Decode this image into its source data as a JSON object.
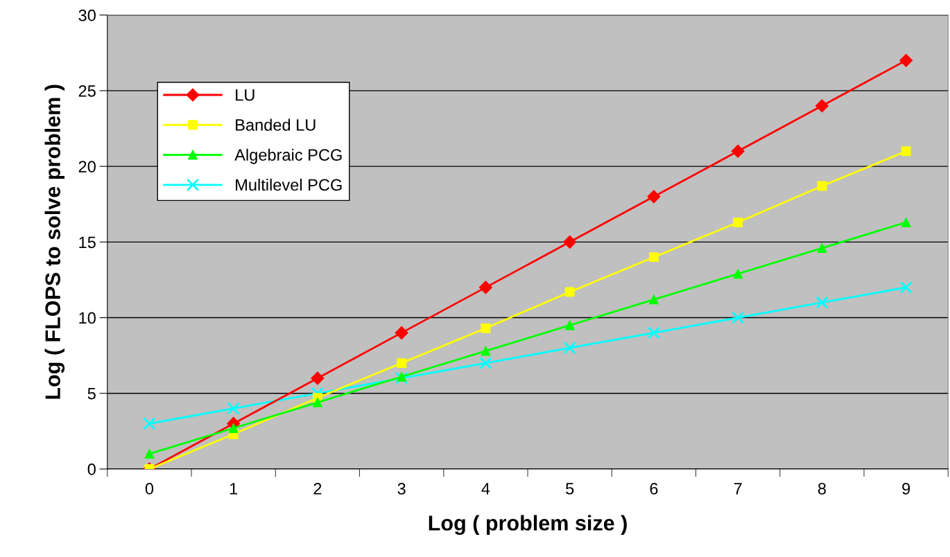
{
  "chart_data": {
    "type": "line",
    "xlabel": "Log ( problem size )",
    "ylabel": "Log ( FLOPS to solve problem )",
    "categories": [
      "0",
      "1",
      "2",
      "3",
      "4",
      "5",
      "6",
      "7",
      "8",
      "9"
    ],
    "series": [
      {
        "name": "LU",
        "color": "#ff0000",
        "marker": "diamond",
        "values": [
          0,
          3,
          6,
          9,
          12,
          15,
          18,
          21,
          24,
          27
        ]
      },
      {
        "name": "Banded LU",
        "color": "#ffff00",
        "marker": "square",
        "values": [
          0,
          2.3,
          4.7,
          7,
          9.3,
          11.7,
          14,
          16.3,
          18.7,
          21
        ]
      },
      {
        "name": "Algebraic PCG",
        "color": "#00ff00",
        "marker": "triangle",
        "values": [
          1,
          2.7,
          4.4,
          6.1,
          7.8,
          9.5,
          11.2,
          12.9,
          14.6,
          16.3
        ]
      },
      {
        "name": "Multilevel PCG",
        "color": "#00ffff",
        "marker": "cross",
        "values": [
          3,
          4,
          5,
          6,
          7,
          8,
          9,
          10,
          11,
          12
        ]
      }
    ],
    "ylim": [
      0,
      30
    ],
    "yticks": [
      0,
      5,
      10,
      15,
      20,
      25,
      30
    ],
    "grid": "y",
    "legend": "top left",
    "line_style": "solid"
  }
}
